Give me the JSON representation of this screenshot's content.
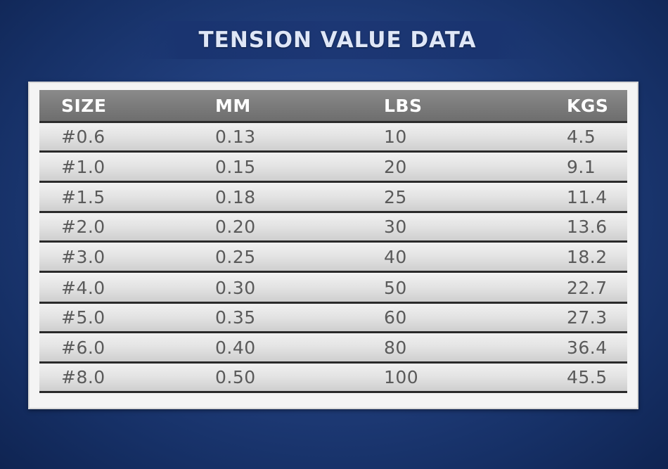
{
  "title": "TENSION VALUE DATA",
  "chart_data": {
    "type": "table",
    "columns": [
      "SIZE",
      "MM",
      "LBS",
      "KGS"
    ],
    "rows": [
      [
        "#0.6",
        "0.13",
        "10",
        "4.5"
      ],
      [
        "#1.0",
        "0.15",
        "20",
        "9.1"
      ],
      [
        "#1.5",
        "0.18",
        "25",
        "11.4"
      ],
      [
        "#2.0",
        "0.20",
        "30",
        "13.6"
      ],
      [
        "#3.0",
        "0.25",
        "40",
        "18.2"
      ],
      [
        "#4.0",
        "0.30",
        "50",
        "22.7"
      ],
      [
        "#5.0",
        "0.35",
        "60",
        "27.3"
      ],
      [
        "#6.0",
        "0.40",
        "80",
        "36.4"
      ],
      [
        "#8.0",
        "0.50",
        "100",
        "45.5"
      ]
    ]
  }
}
